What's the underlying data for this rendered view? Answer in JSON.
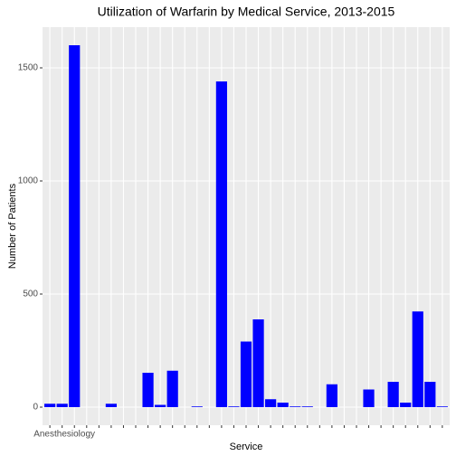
{
  "chart_data": {
    "type": "bar",
    "title": "Utilization of Warfarin by Medical Service, 2013-2015",
    "x_label": "Service",
    "y_label": "Number of Patients",
    "categories": [
      "Anesthesiology",
      null,
      null,
      null,
      null,
      null,
      null,
      null,
      null,
      null,
      null,
      null,
      null,
      null,
      null,
      null,
      null,
      null,
      null,
      null,
      null,
      null,
      null,
      null,
      null,
      null,
      null,
      null,
      null,
      null,
      null,
      null,
      null
    ],
    "values": [
      15,
      15,
      1600,
      0,
      0,
      15,
      0,
      0,
      152,
      10,
      161,
      0,
      3,
      0,
      1440,
      3,
      290,
      388,
      35,
      20,
      3,
      3,
      0,
      101,
      0,
      0,
      78,
      0,
      112,
      20,
      423,
      112,
      3
    ],
    "color": "#0000ff",
    "ylim": [
      -80,
      1680
    ],
    "yticks": [
      0,
      500,
      1000,
      1500
    ],
    "grid": true
  }
}
